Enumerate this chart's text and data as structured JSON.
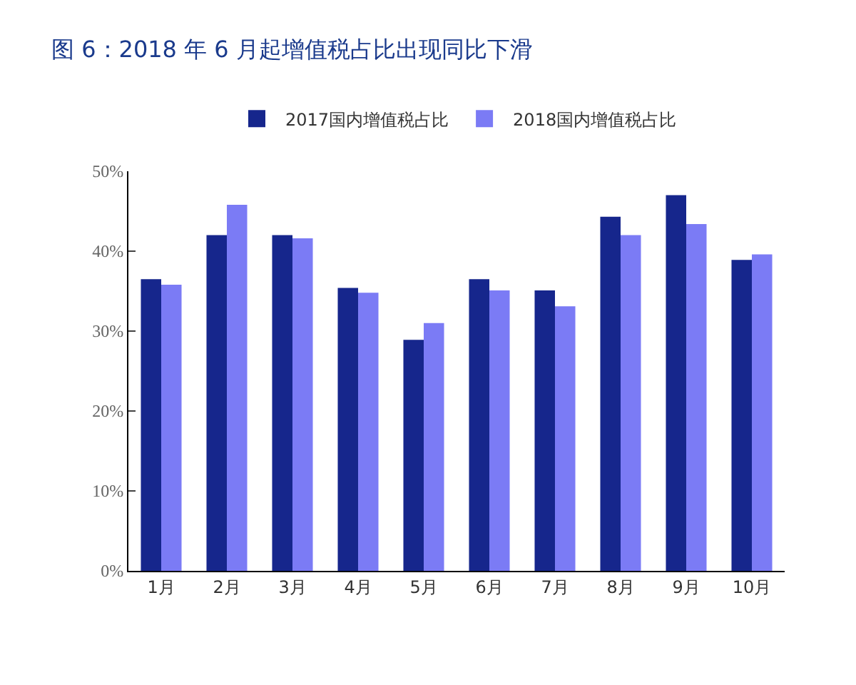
{
  "chart_data": {
    "type": "bar",
    "title": "图 6：2018 年 6 月起增值税占比出现同比下滑",
    "categories": [
      "1月",
      "2月",
      "3月",
      "4月",
      "5月",
      "6月",
      "7月",
      "8月",
      "9月",
      "10月"
    ],
    "series": [
      {
        "name": "2017国内增值税占比",
        "color": "#16268c",
        "values": [
          36.5,
          42.0,
          42.0,
          35.4,
          28.9,
          36.5,
          35.1,
          44.3,
          47.0,
          38.9
        ]
      },
      {
        "name": "2018国内增值税占比",
        "color": "#7b7bf5",
        "values": [
          35.8,
          45.8,
          41.6,
          34.8,
          31.0,
          35.1,
          33.1,
          42.0,
          43.4,
          39.6
        ]
      }
    ],
    "ylim": [
      0,
      50
    ],
    "yticks": [
      {
        "value": 0,
        "label": "0%"
      },
      {
        "value": 10,
        "label": "10%"
      },
      {
        "value": 20,
        "label": "20%"
      },
      {
        "value": 30,
        "label": "30%"
      },
      {
        "value": 40,
        "label": "40%"
      },
      {
        "value": 50,
        "label": "50%"
      }
    ],
    "grid": false,
    "legend": "top"
  }
}
